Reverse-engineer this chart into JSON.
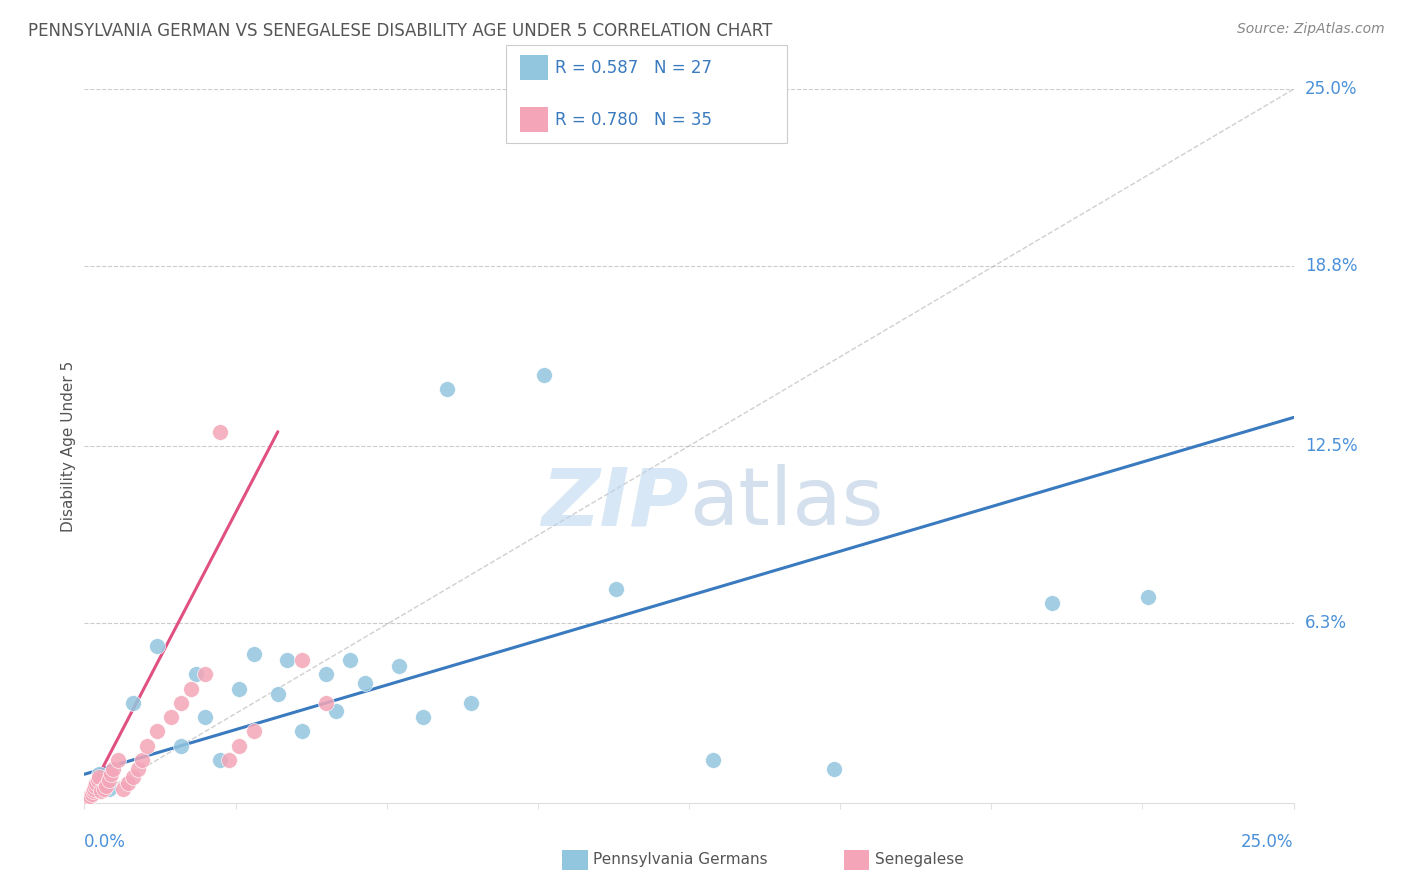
{
  "title": "PENNSYLVANIA GERMAN VS SENEGALESE DISABILITY AGE UNDER 5 CORRELATION CHART",
  "source": "Source: ZipAtlas.com",
  "ylabel": "Disability Age Under 5",
  "y_tick_labels": [
    "6.3%",
    "12.5%",
    "18.8%",
    "25.0%"
  ],
  "y_tick_values": [
    6.3,
    12.5,
    18.8,
    25.0
  ],
  "x_min": 0.0,
  "x_max": 25.0,
  "y_min": 0.0,
  "y_max": 25.0,
  "legend_label_1": "Pennsylvania Germans",
  "legend_label_2": "Senegalese",
  "r1": "0.587",
  "n1": "27",
  "r2": "0.780",
  "n2": "35",
  "color_blue": "#92c5de",
  "color_pink": "#f4a6b8",
  "color_blue_line": "#3a7abf",
  "color_pink_line": "#e05080",
  "color_title": "#555555",
  "color_source": "#888888",
  "color_axis_label": "#555555",
  "color_tick_label": "#4a90d9",
  "color_gridline": "#cccccc",
  "color_legend_text_blue": "#3a7abf",
  "color_legend_text_dark": "#333333",
  "blue_scatter_x": [
    0.3,
    0.5,
    1.0,
    1.5,
    2.0,
    2.3,
    2.5,
    2.8,
    3.2,
    3.5,
    4.0,
    4.2,
    4.5,
    5.0,
    5.2,
    5.5,
    5.8,
    6.5,
    7.0,
    8.0,
    9.5,
    11.0,
    13.0,
    15.5,
    20.0,
    22.0,
    7.5
  ],
  "blue_scatter_y": [
    1.0,
    0.5,
    3.5,
    5.5,
    2.0,
    4.5,
    3.0,
    1.5,
    4.0,
    5.2,
    3.8,
    5.0,
    2.5,
    4.5,
    3.2,
    5.0,
    4.2,
    4.8,
    3.0,
    3.5,
    15.0,
    7.5,
    1.5,
    1.2,
    7.0,
    7.2,
    14.5
  ],
  "pink_scatter_x": [
    0.05,
    0.08,
    0.1,
    0.12,
    0.15,
    0.18,
    0.2,
    0.22,
    0.25,
    0.28,
    0.3,
    0.35,
    0.4,
    0.45,
    0.5,
    0.55,
    0.6,
    0.7,
    0.8,
    0.9,
    1.0,
    1.1,
    1.2,
    1.3,
    1.5,
    1.8,
    2.0,
    2.2,
    2.5,
    3.0,
    3.2,
    3.5,
    4.5,
    5.0,
    2.8
  ],
  "pink_scatter_y": [
    0.1,
    0.15,
    0.2,
    0.25,
    0.3,
    0.4,
    0.5,
    0.6,
    0.7,
    0.8,
    0.9,
    0.4,
    0.5,
    0.6,
    0.8,
    1.0,
    1.2,
    1.5,
    0.5,
    0.7,
    0.9,
    1.2,
    1.5,
    2.0,
    2.5,
    3.0,
    3.5,
    4.0,
    4.5,
    1.5,
    2.0,
    2.5,
    5.0,
    3.5,
    13.0
  ],
  "blue_line_x": [
    0.0,
    25.0
  ],
  "blue_line_y": [
    1.0,
    13.5
  ],
  "pink_line_x": [
    0.0,
    4.0
  ],
  "pink_line_y": [
    0.0,
    13.0
  ],
  "diag_line_x": [
    0.0,
    25.0
  ],
  "diag_line_y": [
    0.0,
    25.0
  ]
}
